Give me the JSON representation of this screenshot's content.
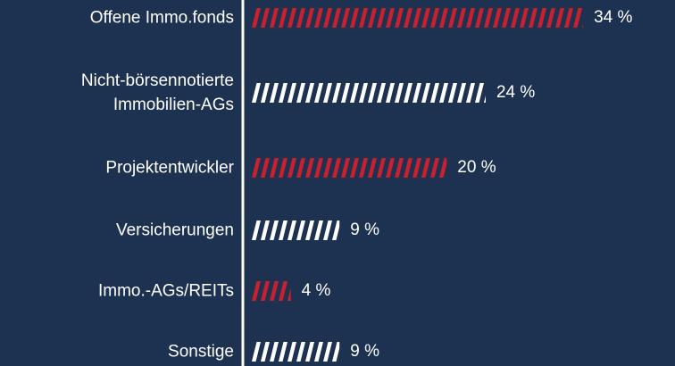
{
  "chart_data": {
    "type": "hbar",
    "categories": [
      "Offene Immo.fonds",
      "Nicht-börsennotierte Immobilien-AGs",
      "Projektentwickler",
      "Versicherungen",
      "Immo.-AGs/REITs",
      "Sonstige"
    ],
    "values": [
      34,
      24,
      20,
      9,
      4,
      9
    ],
    "value_labels": [
      "34 %",
      "24 %",
      "20 %",
      "9 %",
      "4 %",
      "9 %"
    ],
    "colors": [
      "#c8202f",
      "#ffffff",
      "#c8202f",
      "#ffffff",
      "#c8202f",
      "#ffffff"
    ],
    "xlim": [
      0,
      35
    ]
  }
}
